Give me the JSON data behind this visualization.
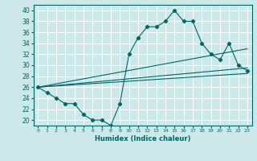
{
  "title": "",
  "xlabel": "Humidex (Indice chaleur)",
  "bg_color": "#cce8e8",
  "grid_color": "#ffffff",
  "line_color": "#006666",
  "xlim": [
    -0.5,
    23.5
  ],
  "ylim": [
    19,
    41
  ],
  "yticks": [
    20,
    22,
    24,
    26,
    28,
    30,
    32,
    34,
    36,
    38,
    40
  ],
  "xticks": [
    0,
    1,
    2,
    3,
    4,
    5,
    6,
    7,
    8,
    9,
    10,
    11,
    12,
    13,
    14,
    15,
    16,
    17,
    18,
    19,
    20,
    21,
    22,
    23
  ],
  "main_x": [
    0,
    1,
    2,
    3,
    4,
    5,
    6,
    7,
    8,
    9,
    10,
    11,
    12,
    13,
    14,
    15,
    16,
    17,
    18,
    19,
    20,
    21,
    22,
    23
  ],
  "main_y": [
    26,
    25,
    24,
    23,
    23,
    21,
    20,
    20,
    19,
    23,
    32,
    35,
    37,
    37,
    38,
    40,
    38,
    38,
    34,
    32,
    31,
    34,
    30,
    29
  ],
  "line2_x": [
    0,
    23
  ],
  "line2_y": [
    26.0,
    28.5
  ],
  "line3_x": [
    0,
    23
  ],
  "line3_y": [
    26.0,
    33.0
  ],
  "line4_x": [
    0,
    23
  ],
  "line4_y": [
    26.0,
    29.5
  ]
}
